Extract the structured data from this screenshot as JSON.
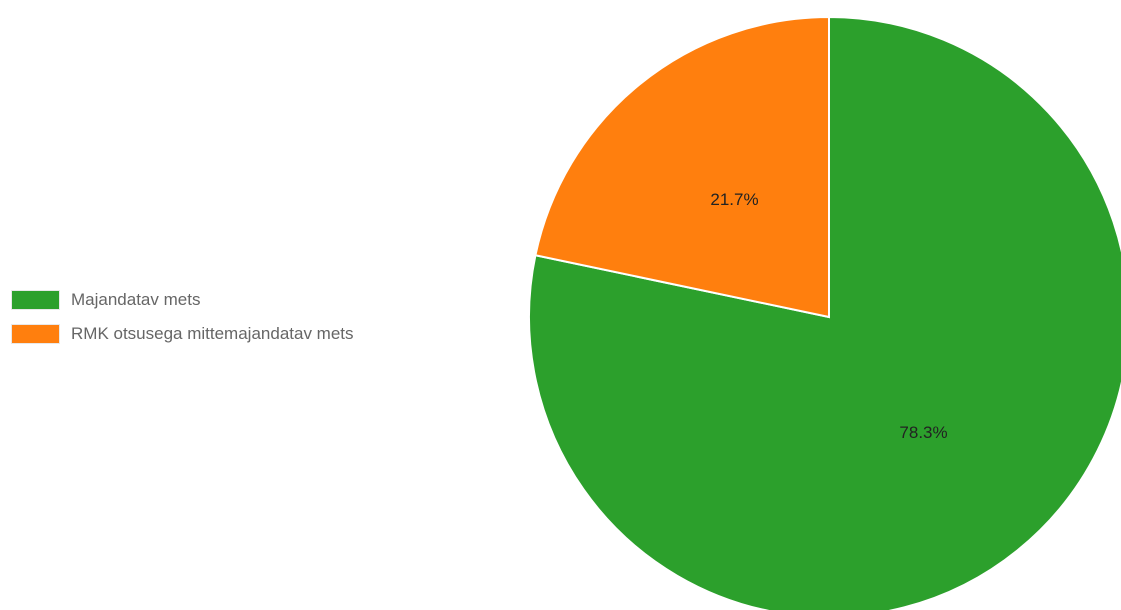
{
  "chart_data": {
    "type": "pie",
    "categories": [
      "Majandatav mets",
      "RMK otsusega mittemajandatav mets"
    ],
    "values": [
      78.3,
      21.7
    ],
    "colors": [
      "#2ca02c",
      "#ff7f0e"
    ],
    "data_labels": [
      "78.3%",
      "21.7%"
    ],
    "start_angle_deg": 0,
    "direction": "clockwise",
    "legend_position": "left"
  }
}
